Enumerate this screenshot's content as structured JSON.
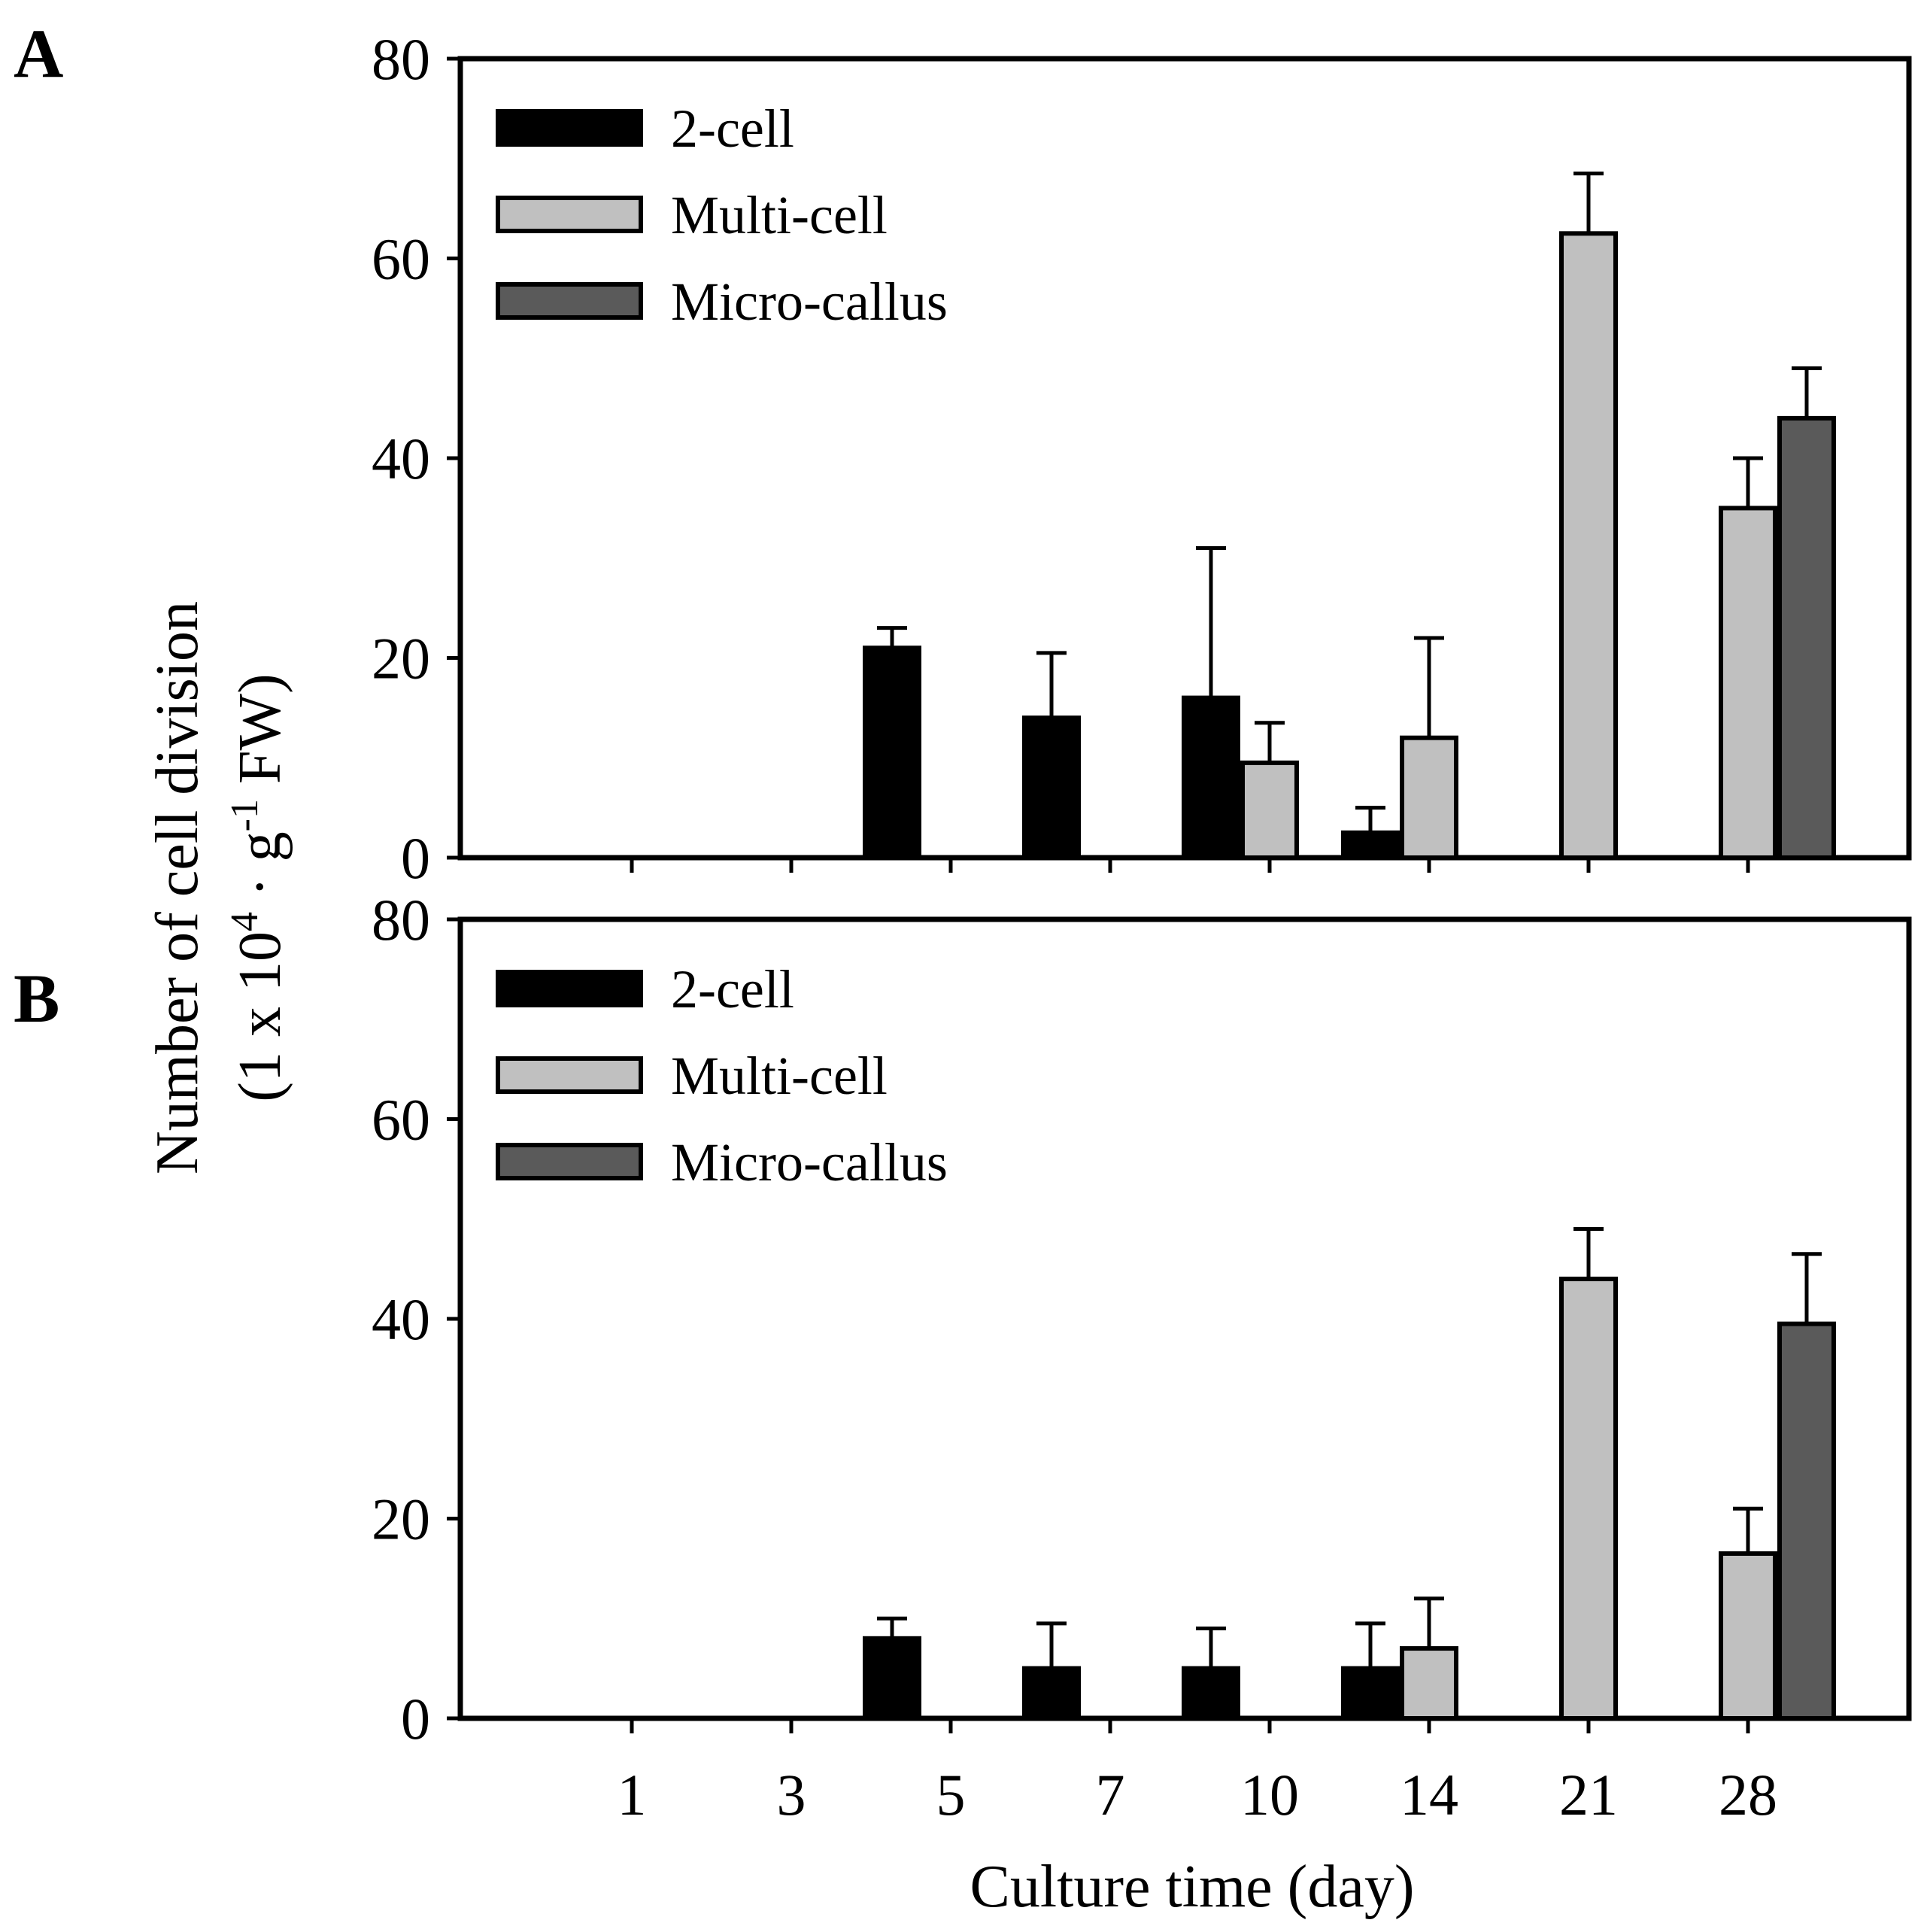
{
  "chart_data": [
    {
      "type": "bar",
      "panel": "A",
      "categories": [
        "1",
        "3",
        "5",
        "7",
        "10",
        "14",
        "21",
        "28"
      ],
      "series": [
        {
          "name": "2-cell",
          "color": "#000000",
          "values": [
            0,
            0,
            21,
            14,
            16,
            2.5,
            0,
            0
          ],
          "errors": [
            0,
            0,
            2,
            6.5,
            15,
            2.5,
            0,
            0
          ]
        },
        {
          "name": "Multi-cell",
          "color": "#c0c0c0",
          "values": [
            0,
            0,
            0,
            0,
            9.5,
            12,
            62.5,
            35
          ],
          "errors": [
            0,
            0,
            0,
            0,
            4,
            10,
            6,
            5
          ]
        },
        {
          "name": "Micro-callus",
          "color": "#5a5a5a",
          "values": [
            0,
            0,
            0,
            0,
            0,
            0,
            0,
            44
          ],
          "errors": [
            0,
            0,
            0,
            0,
            0,
            0,
            0,
            5
          ]
        }
      ],
      "ylim": [
        0,
        80
      ],
      "yticks": [
        "0",
        "20",
        "40",
        "60",
        "80"
      ],
      "legend": "top-left"
    },
    {
      "type": "bar",
      "panel": "B",
      "categories": [
        "1",
        "3",
        "5",
        "7",
        "10",
        "14",
        "21",
        "28"
      ],
      "series": [
        {
          "name": "2-cell",
          "color": "#000000",
          "values": [
            0,
            0,
            8,
            5,
            5,
            5,
            0,
            0
          ],
          "errors": [
            0,
            0,
            2,
            4.5,
            4,
            4.5,
            0,
            0
          ]
        },
        {
          "name": "Multi-cell",
          "color": "#c0c0c0",
          "values": [
            0,
            0,
            0,
            0,
            0,
            7,
            44,
            16.5
          ],
          "errors": [
            0,
            0,
            0,
            0,
            0,
            5,
            5,
            4.5
          ]
        },
        {
          "name": "Micro-callus",
          "color": "#5a5a5a",
          "values": [
            0,
            0,
            0,
            0,
            0,
            0,
            0,
            39.5
          ],
          "errors": [
            0,
            0,
            0,
            0,
            0,
            0,
            0,
            7
          ]
        }
      ],
      "ylim": [
        0,
        80
      ],
      "yticks": [
        "0",
        "20",
        "40",
        "60",
        "80"
      ],
      "legend": "top-left"
    }
  ],
  "ylabel_line1": "Number of cell division",
  "ylabel_line2_prefix": "(1 x 10",
  "ylabel_line2_exp1": "4",
  "ylabel_line2_mid": " · g",
  "ylabel_line2_exp2": "-1",
  "ylabel_line2_suffix": " FW)",
  "xlabel": "Culture time (day)"
}
